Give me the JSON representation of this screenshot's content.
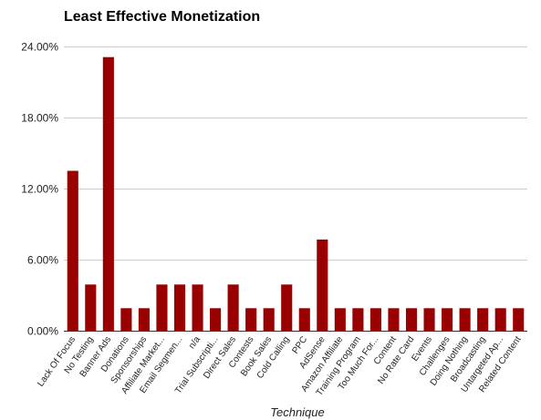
{
  "chart_data": {
    "type": "bar",
    "title": "Least Effective Monetization",
    "xlabel": "Technique",
    "ylabel": "",
    "ylim": [
      0,
      24
    ],
    "y_ticks": [
      "0.00%",
      "6.00%",
      "12.00%",
      "18.00%",
      "24.00%"
    ],
    "grid": true,
    "bar_color": "#990000",
    "categories": [
      "Lack Of Focus",
      "No Testing",
      "Banner Ads",
      "Donations",
      "Sponsorships",
      "Affiliate Market...",
      "Email Segmen...",
      "n/a",
      "Trial Subscripti...",
      "Direct Sales",
      "Contests",
      "Book Sales",
      "Cold Calling",
      "PPC",
      "AdSense",
      "Amazon Affiliate",
      "Training Program",
      "Too Much For...",
      "Content",
      "No Rate Card",
      "Events",
      "Challenges",
      "Doing Nothing",
      "Broadcasting",
      "Untargeted Ap...",
      "Related Content"
    ],
    "values": [
      13.5,
      3.9,
      23.1,
      1.9,
      1.9,
      3.9,
      3.9,
      3.9,
      1.9,
      3.9,
      1.9,
      1.9,
      3.9,
      1.9,
      7.7,
      1.9,
      1.9,
      1.9,
      1.9,
      1.9,
      1.9,
      1.9,
      1.9,
      1.9,
      1.9,
      1.9
    ]
  }
}
